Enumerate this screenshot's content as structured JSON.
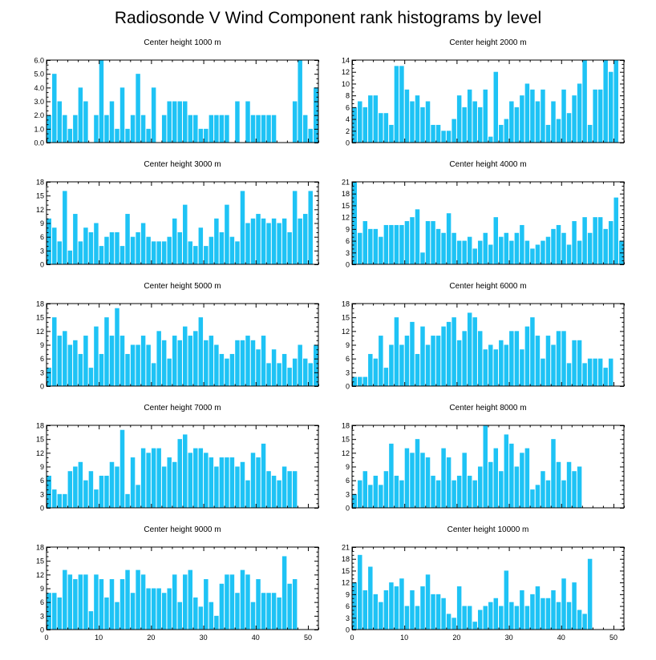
{
  "title": "Radiosonde V Wind Component rank histograms by level",
  "colors": {
    "bar": "#1ec3f5",
    "frame": "#000000"
  },
  "chart_data": [
    {
      "type": "bar",
      "title": "Center height 1000 m",
      "xlim": [
        0,
        52
      ],
      "ylim": [
        0,
        6
      ],
      "xticks": [
        0,
        10,
        20,
        30,
        40,
        50
      ],
      "yticks": [
        0,
        1,
        2,
        3,
        4,
        5,
        6
      ],
      "ytick_labels": [
        "0.0",
        "1.0",
        "2.0",
        "3.0",
        "4.0",
        "5.0",
        "6.0"
      ],
      "values": [
        2,
        5,
        3,
        2,
        1,
        2,
        4,
        3,
        0,
        2,
        6,
        2,
        3,
        1,
        4,
        1,
        2,
        5,
        2,
        1,
        4,
        0,
        2,
        3,
        3,
        3,
        3,
        2,
        2,
        1,
        1,
        2,
        2,
        2,
        2,
        0,
        3,
        0,
        3,
        2,
        2,
        2,
        2,
        2,
        0,
        0,
        0,
        3,
        6,
        2,
        1,
        4
      ]
    },
    {
      "type": "bar",
      "title": "Center height 2000 m",
      "xlim": [
        0,
        52
      ],
      "ylim": [
        0,
        14
      ],
      "xticks": [
        0,
        10,
        20,
        30,
        40,
        50
      ],
      "yticks": [
        0,
        2,
        4,
        6,
        8,
        10,
        12,
        14
      ],
      "ytick_labels": [
        "0",
        "2",
        "4",
        "6",
        "8",
        "10",
        "12",
        "14"
      ],
      "values": [
        6,
        7,
        6,
        8,
        8,
        5,
        5,
        3,
        13,
        13,
        9,
        7,
        8,
        6,
        7,
        3,
        3,
        2,
        2,
        4,
        8,
        6,
        9,
        7,
        6,
        9,
        1,
        12,
        3,
        4,
        7,
        6,
        8,
        10,
        9,
        7,
        9,
        3,
        7,
        4,
        9,
        5,
        8,
        10,
        14,
        3,
        9,
        9,
        14,
        12,
        14,
        0
      ]
    },
    {
      "type": "bar",
      "title": "Center height 3000 m",
      "xlim": [
        0,
        52
      ],
      "ylim": [
        0,
        18
      ],
      "xticks": [
        0,
        10,
        20,
        30,
        40,
        50
      ],
      "yticks": [
        0,
        3,
        6,
        9,
        12,
        15,
        18
      ],
      "ytick_labels": [
        "0",
        "3",
        "6",
        "9",
        "12",
        "15",
        "18"
      ],
      "values": [
        10,
        8,
        5,
        16,
        3,
        11,
        5,
        8,
        7,
        9,
        4,
        6,
        7,
        7,
        4,
        11,
        6,
        7,
        9,
        6,
        5,
        5,
        5,
        6,
        10,
        7,
        13,
        5,
        4,
        8,
        4,
        6,
        10,
        7,
        13,
        6,
        5,
        16,
        9,
        10,
        11,
        10,
        9,
        10,
        9,
        10,
        7,
        16,
        10,
        11,
        16,
        0
      ]
    },
    {
      "type": "bar",
      "title": "Center height 4000 m",
      "xlim": [
        0,
        52
      ],
      "ylim": [
        0,
        21
      ],
      "xticks": [
        0,
        10,
        20,
        30,
        40,
        50
      ],
      "yticks": [
        0,
        3,
        6,
        9,
        12,
        15,
        18,
        21
      ],
      "ytick_labels": [
        "0",
        "3",
        "6",
        "9",
        "12",
        "15",
        "18",
        "21"
      ],
      "values": [
        21,
        8,
        11,
        9,
        9,
        7,
        10,
        10,
        10,
        10,
        11,
        12,
        14,
        3,
        11,
        11,
        9,
        8,
        13,
        8,
        6,
        6,
        7,
        4,
        6,
        8,
        5,
        12,
        7,
        8,
        6,
        8,
        10,
        6,
        4,
        5,
        6,
        7,
        9,
        10,
        8,
        5,
        11,
        6,
        12,
        8,
        12,
        12,
        9,
        11,
        17,
        6
      ]
    },
    {
      "type": "bar",
      "title": "Center height 5000 m",
      "xlim": [
        0,
        52
      ],
      "ylim": [
        0,
        18
      ],
      "xticks": [
        0,
        10,
        20,
        30,
        40,
        50
      ],
      "yticks": [
        0,
        3,
        6,
        9,
        12,
        15,
        18
      ],
      "ytick_labels": [
        "0",
        "3",
        "6",
        "9",
        "12",
        "15",
        "18"
      ],
      "values": [
        4,
        15,
        11,
        12,
        9,
        10,
        7,
        11,
        4,
        13,
        7,
        15,
        11,
        17,
        11,
        7,
        9,
        9,
        11,
        9,
        5,
        12,
        10,
        6,
        11,
        10,
        13,
        11,
        12,
        15,
        10,
        11,
        9,
        7,
        6,
        7,
        10,
        10,
        11,
        10,
        8,
        11,
        5,
        8,
        5,
        7,
        4,
        6,
        9,
        6,
        5,
        9
      ]
    },
    {
      "type": "bar",
      "title": "Center height 6000 m",
      "xlim": [
        0,
        52
      ],
      "ylim": [
        0,
        18
      ],
      "xticks": [
        0,
        10,
        20,
        30,
        40,
        50
      ],
      "yticks": [
        0,
        3,
        6,
        9,
        12,
        15,
        18
      ],
      "ytick_labels": [
        "0",
        "3",
        "6",
        "9",
        "12",
        "15",
        "18"
      ],
      "values": [
        2,
        2,
        2,
        7,
        6,
        11,
        4,
        9,
        15,
        9,
        11,
        14,
        7,
        13,
        9,
        11,
        11,
        13,
        14,
        15,
        10,
        12,
        16,
        15,
        12,
        8,
        9,
        8,
        10,
        9,
        12,
        12,
        8,
        13,
        15,
        11,
        6,
        11,
        9,
        12,
        12,
        5,
        10,
        10,
        5,
        6,
        6,
        6,
        4,
        6,
        0,
        0
      ]
    },
    {
      "type": "bar",
      "title": "Center height 7000 m",
      "xlim": [
        0,
        52
      ],
      "ylim": [
        0,
        18
      ],
      "xticks": [
        0,
        10,
        20,
        30,
        40,
        50
      ],
      "yticks": [
        0,
        3,
        6,
        9,
        12,
        15,
        18
      ],
      "ytick_labels": [
        "0",
        "3",
        "6",
        "9",
        "12",
        "15",
        "18"
      ],
      "values": [
        7,
        4,
        3,
        3,
        8,
        9,
        10,
        6,
        8,
        4,
        7,
        7,
        10,
        9,
        17,
        3,
        11,
        5,
        13,
        12,
        13,
        13,
        9,
        11,
        10,
        15,
        16,
        12,
        13,
        13,
        12,
        11,
        9,
        11,
        11,
        11,
        9,
        10,
        6,
        12,
        11,
        14,
        8,
        7,
        6,
        9,
        8,
        8,
        0,
        0,
        0,
        0
      ]
    },
    {
      "type": "bar",
      "title": "Center height 8000 m",
      "xlim": [
        0,
        52
      ],
      "ylim": [
        0,
        18
      ],
      "xticks": [
        0,
        10,
        20,
        30,
        40,
        50
      ],
      "yticks": [
        0,
        3,
        6,
        9,
        12,
        15,
        18
      ],
      "ytick_labels": [
        "0",
        "3",
        "6",
        "9",
        "12",
        "15",
        "18"
      ],
      "values": [
        3,
        6,
        8,
        5,
        7,
        5,
        8,
        14,
        7,
        6,
        13,
        12,
        15,
        12,
        11,
        7,
        6,
        13,
        11,
        6,
        7,
        12,
        7,
        6,
        9,
        18,
        10,
        13,
        8,
        16,
        14,
        9,
        12,
        13,
        4,
        5,
        8,
        6,
        15,
        10,
        6,
        10,
        8,
        9,
        0,
        0,
        0,
        0,
        0,
        0,
        0,
        0
      ]
    },
    {
      "type": "bar",
      "title": "Center height 9000 m",
      "xlim": [
        0,
        52
      ],
      "ylim": [
        0,
        18
      ],
      "xticks": [
        0,
        10,
        20,
        30,
        40,
        50
      ],
      "yticks": [
        0,
        3,
        6,
        9,
        12,
        15,
        18
      ],
      "ytick_labels": [
        "0",
        "3",
        "6",
        "9",
        "12",
        "15",
        "18"
      ],
      "values": [
        8,
        8,
        7,
        13,
        12,
        11,
        12,
        12,
        4,
        12,
        11,
        7,
        11,
        6,
        11,
        13,
        8,
        13,
        12,
        9,
        9,
        9,
        8,
        9,
        12,
        6,
        12,
        13,
        7,
        5,
        11,
        6,
        3,
        10,
        12,
        12,
        8,
        13,
        12,
        6,
        11,
        8,
        8,
        8,
        7,
        16,
        10,
        11,
        0,
        0,
        0,
        0
      ]
    },
    {
      "type": "bar",
      "title": "Center height 10000 m",
      "xlim": [
        0,
        52
      ],
      "ylim": [
        0,
        21
      ],
      "xticks": [
        0,
        10,
        20,
        30,
        40,
        50
      ],
      "yticks": [
        0,
        3,
        6,
        9,
        12,
        15,
        18,
        21
      ],
      "ytick_labels": [
        "0",
        "3",
        "6",
        "9",
        "12",
        "15",
        "18",
        "21"
      ],
      "values": [
        12,
        19,
        10,
        16,
        9,
        7,
        10,
        12,
        11,
        13,
        6,
        10,
        6,
        11,
        14,
        9,
        9,
        8,
        4,
        3,
        11,
        6,
        6,
        2,
        5,
        6,
        7,
        8,
        6,
        15,
        7,
        6,
        10,
        6,
        9,
        11,
        8,
        8,
        10,
        7,
        13,
        7,
        12,
        5,
        4,
        18,
        0,
        0,
        0,
        0,
        0,
        0
      ]
    }
  ]
}
